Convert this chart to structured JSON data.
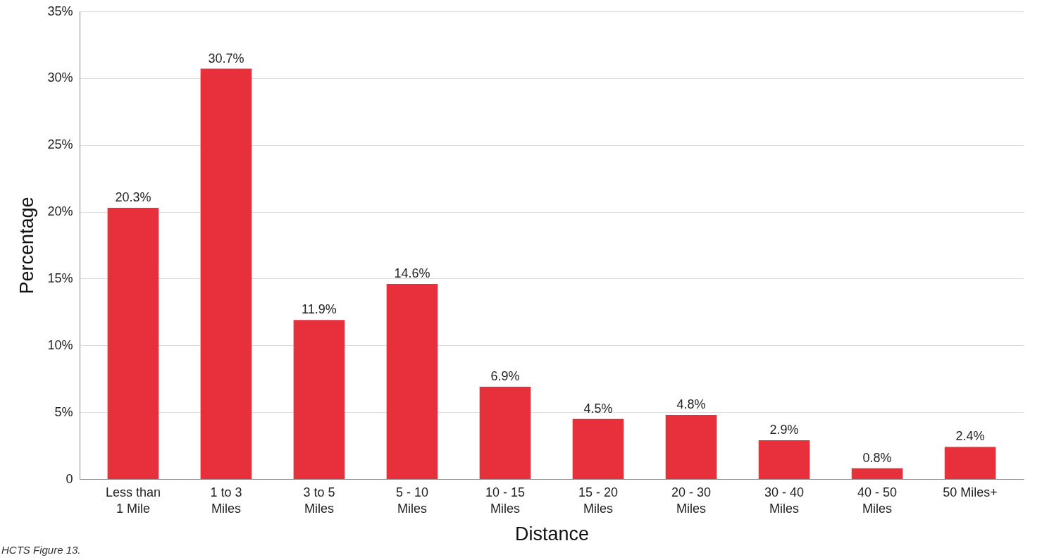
{
  "chart_data": {
    "type": "bar",
    "xlabel": "Distance",
    "ylabel": "Percentage",
    "categories": [
      "Less than\n1 Mile",
      "1 to 3\nMiles",
      "3 to 5\nMiles",
      "5 - 10\nMiles",
      "10 - 15\nMiles",
      "15 - 20\nMiles",
      "20 - 30\nMiles",
      "30 - 40\nMiles",
      "40 - 50\nMiles",
      "50 Miles+"
    ],
    "values": [
      20.3,
      30.7,
      11.9,
      14.6,
      6.9,
      4.5,
      4.8,
      2.9,
      0.8,
      2.4
    ],
    "value_labels": [
      "20.3%",
      "30.7%",
      "11.9%",
      "14.6%",
      "6.9%",
      "4.5%",
      "4.8%",
      "2.9%",
      "0.8%",
      "2.4%"
    ],
    "color": "#e8303c",
    "ylim": [
      0,
      35
    ],
    "yticks": [
      0,
      {
        "value": 5,
        "label": "5%"
      },
      {
        "value": 10,
        "label": "10%"
      },
      {
        "value": 15,
        "label": "15%"
      },
      {
        "value": 20,
        "label": "20%"
      },
      {
        "value": 25,
        "label": "25%"
      },
      {
        "value": 30,
        "label": "30%"
      },
      {
        "value": 35,
        "label": "35%"
      }
    ],
    "grid": "y",
    "annotations": [
      "HCTS Figure 13."
    ]
  }
}
